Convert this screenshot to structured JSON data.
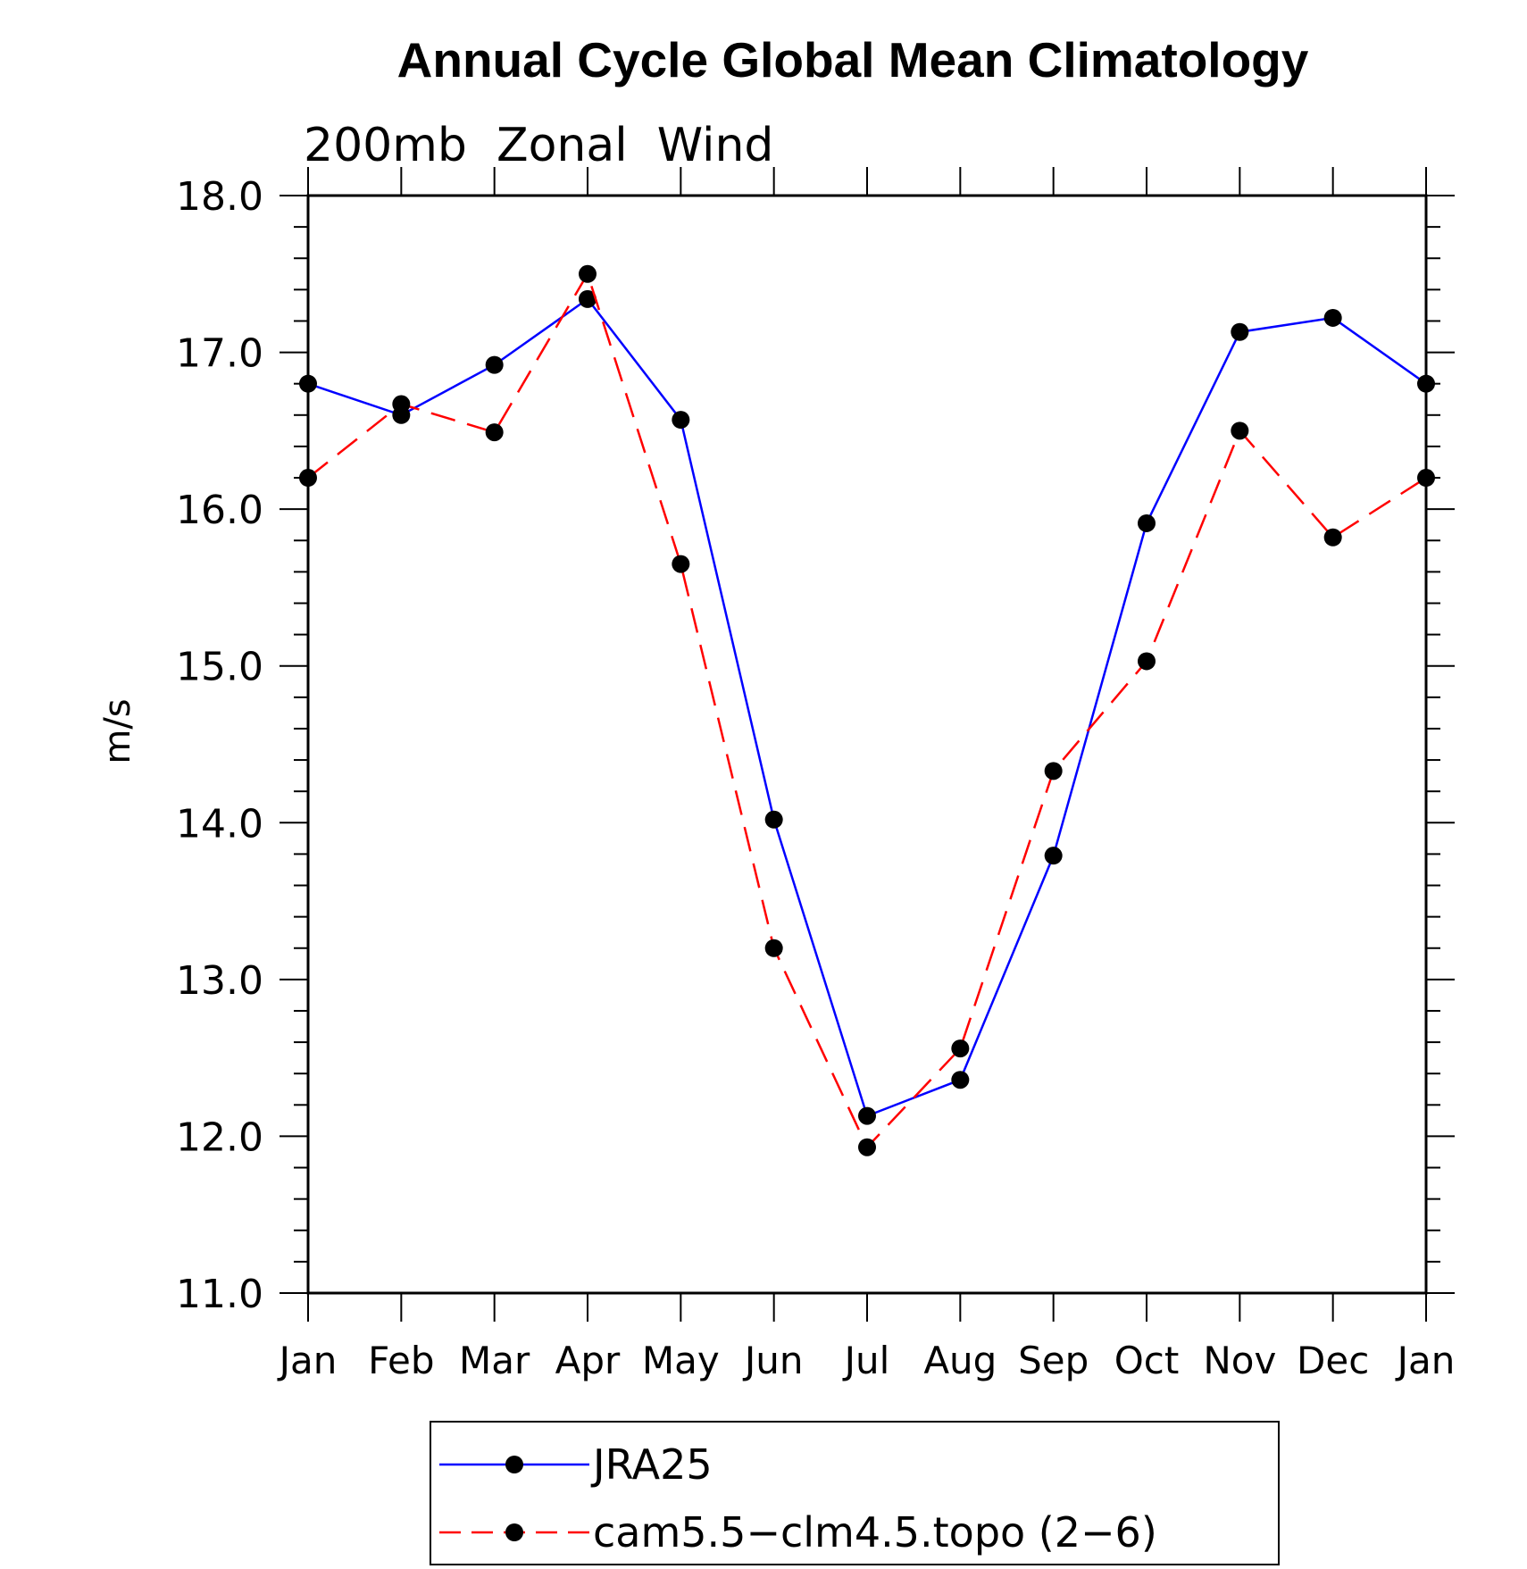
{
  "chart_data": {
    "type": "line",
    "title": "Annual Cycle Global Mean Climatology",
    "subtitle": "200mb  Zonal  Wind",
    "ylabel": "m/s",
    "xlabel": "",
    "ylim": [
      11.0,
      18.0
    ],
    "y_ticks": [
      "18.0",
      "17.0",
      "16.0",
      "15.0",
      "14.0",
      "13.0",
      "12.0",
      "11.0"
    ],
    "categories": [
      "Jan",
      "Feb",
      "Mar",
      "Apr",
      "May",
      "Jun",
      "Jul",
      "Aug",
      "Sep",
      "Oct",
      "Nov",
      "Dec",
      "Jan"
    ],
    "series": [
      {
        "name": "JRA25",
        "color": "#0000ff",
        "dash": "solid",
        "values": [
          16.8,
          16.6,
          16.92,
          17.34,
          16.57,
          14.02,
          12.13,
          12.36,
          13.79,
          15.91,
          17.13,
          17.22,
          16.8
        ]
      },
      {
        "name": "cam5.5−clm4.5.topo (2−6)",
        "color": "#ff0000",
        "dash": "dashed",
        "values": [
          16.2,
          16.67,
          16.49,
          17.5,
          15.65,
          13.2,
          11.93,
          12.56,
          14.33,
          15.03,
          16.5,
          15.82,
          16.2
        ]
      }
    ],
    "marker_color": "#000000",
    "legend_position": "bottom"
  }
}
